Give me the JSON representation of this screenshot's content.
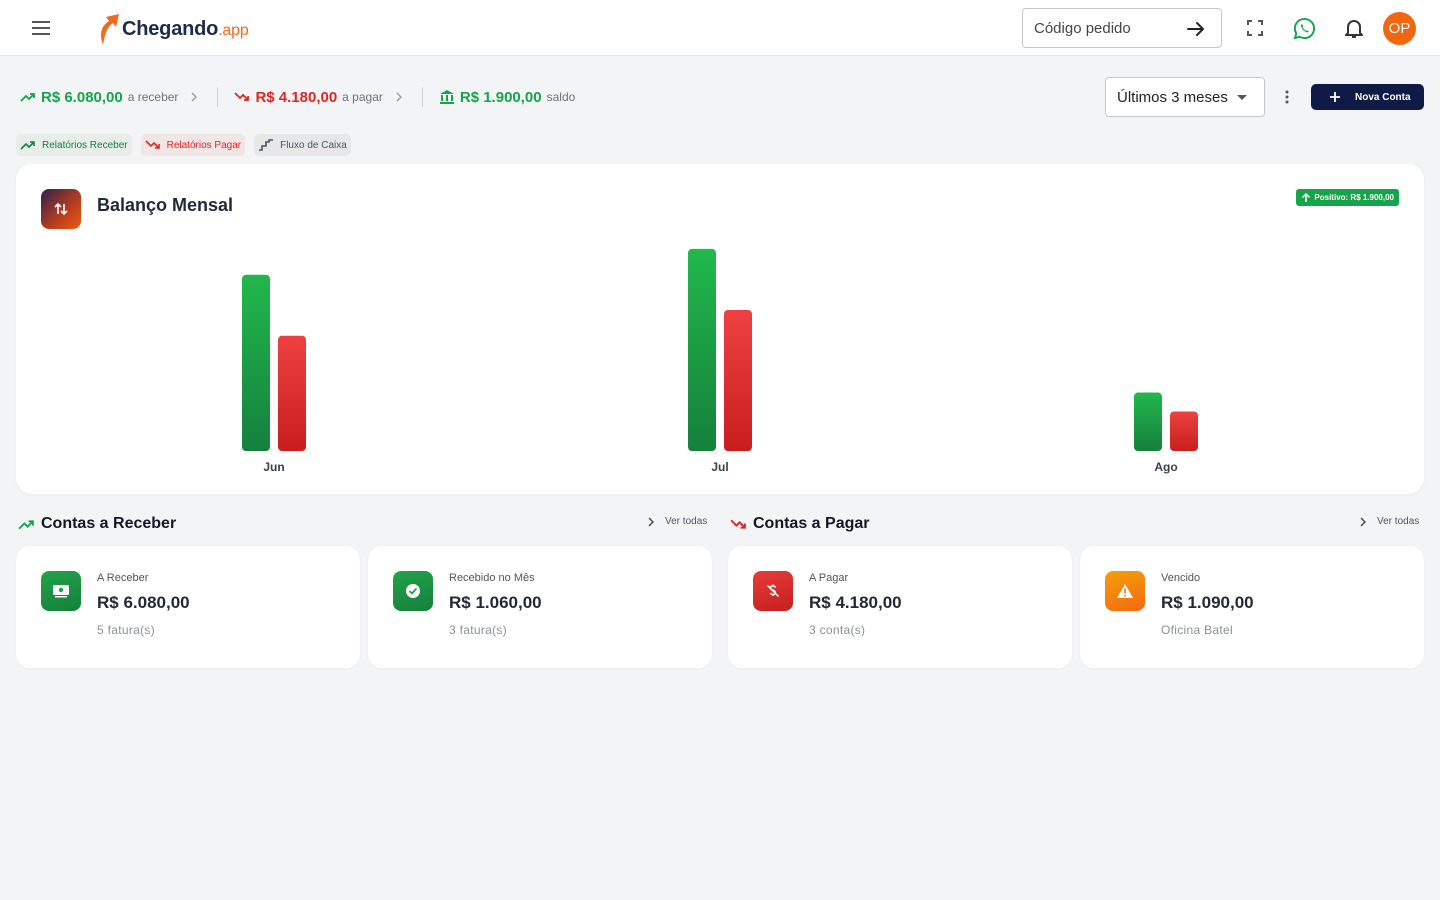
{
  "header": {
    "logo_text": "Chegando",
    "logo_suffix": ".app",
    "search_placeholder": "Código pedido",
    "avatar_initials": "OP",
    "icons": [
      "menu-icon",
      "arrow-right-icon",
      "fullscreen-icon",
      "whatsapp-icon",
      "bell-icon"
    ]
  },
  "summary": {
    "receber": {
      "value": "R$ 6.080,00",
      "label": "a receber"
    },
    "pagar": {
      "value": "R$ 4.180,00",
      "label": "a pagar"
    },
    "saldo": {
      "value": "R$ 1.900,00",
      "label": "saldo"
    }
  },
  "toolbar": {
    "period": "Últimos 3 meses",
    "new_label": "Nova Conta"
  },
  "chips": [
    {
      "label": "Relatórios Receber"
    },
    {
      "label": "Relatórios Pagar"
    },
    {
      "label": "Fluxo de Caixa"
    }
  ],
  "chart_card": {
    "title": "Balanço Mensal",
    "badge": "Positivo: R$ 1.900,00"
  },
  "chart_data": {
    "type": "bar",
    "title": "Balanço Mensal",
    "categories": [
      "Jun",
      "Jul",
      "Ago"
    ],
    "series": [
      {
        "values": [
          2050,
          2350,
          680
        ],
        "color": "#16a34a"
      },
      {
        "values": [
          1340,
          1640,
          460
        ],
        "color": "#dc2626"
      }
    ],
    "ylim": [
      0,
      2500
    ],
    "grid": false
  },
  "receber_section": {
    "title": "Contas a Receber",
    "link": "Ver todas",
    "cards": [
      {
        "label": "A Receber",
        "value": "R$ 6.080,00",
        "sub": "5 fatura(s)"
      },
      {
        "label": "Recebido no Mês",
        "value": "R$ 1.060,00",
        "sub": "3 fatura(s)"
      }
    ]
  },
  "pagar_section": {
    "title": "Contas a Pagar",
    "link": "Ver todas",
    "cards": [
      {
        "label": "A Pagar",
        "value": "R$ 4.180,00",
        "sub": "3 conta(s)"
      },
      {
        "label": "Vencido",
        "value": "R$ 1.090,00",
        "sub": "Oficina Batel"
      }
    ]
  },
  "colors": {
    "positive": "#16a34a",
    "negative": "#dc2626",
    "brand_dark": "#0f1a45",
    "brand_orange": "#f26a21"
  }
}
